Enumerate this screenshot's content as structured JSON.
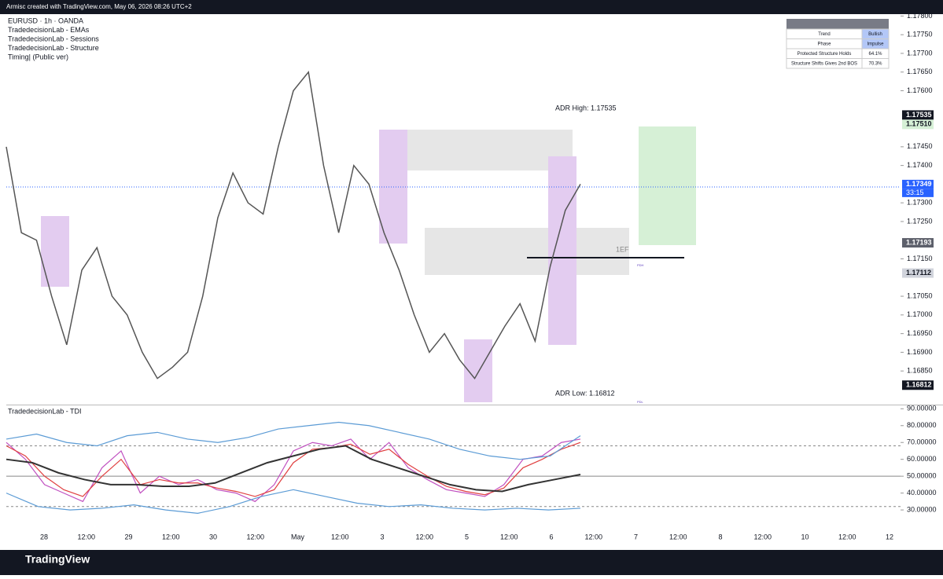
{
  "header": {
    "caption": "Armisc created with TradingView.com, May 06, 2026 08:26 UTC+2"
  },
  "legend": [
    "EURUSD · 1h · OANDA",
    "TradedecisionLab - EMAs",
    "TradedecisionLab - Sessions",
    "TradedecisionLab - Structure",
    "Timing| (Public ver)"
  ],
  "info_table": {
    "rows": [
      [
        "Trend",
        "Bullish"
      ],
      [
        "Phase",
        "Impulse"
      ],
      [
        "Protected Structure Holds",
        "64.1%"
      ],
      [
        "Structure Shifts Gives 2nd BOS",
        "70.3%"
      ]
    ]
  },
  "price_axis": {
    "ylim": [
      1.1676,
      1.17805
    ],
    "ticks": [
      {
        "value": 1.178,
        "label": "1.17800"
      },
      {
        "value": 1.1775,
        "label": "1.17750"
      },
      {
        "value": 1.177,
        "label": "1.17700"
      },
      {
        "value": 1.1765,
        "label": "1.17650"
      },
      {
        "value": 1.176,
        "label": "1.17600"
      },
      {
        "value": 1.1745,
        "label": "1.17450"
      },
      {
        "value": 1.174,
        "label": "1.17400"
      },
      {
        "value": 1.173,
        "label": "1.17300"
      },
      {
        "value": 1.1725,
        "label": "1.17250"
      },
      {
        "value": 1.1715,
        "label": "1.17150"
      },
      {
        "value": 1.1705,
        "label": "1.17050"
      },
      {
        "value": 1.17,
        "label": "1.17000"
      },
      {
        "value": 1.1695,
        "label": "1.16950"
      },
      {
        "value": 1.169,
        "label": "1.16900"
      },
      {
        "value": 1.1685,
        "label": "1.16850"
      }
    ],
    "markers": [
      {
        "value": 1.17535,
        "label": "1.17535",
        "color": "#131722"
      },
      {
        "value": 1.1751,
        "label": "1.17510",
        "color": "#d6f0d6"
      },
      {
        "value": 1.17349,
        "label": "1.17349",
        "color": "#2962ff"
      },
      {
        "value": 1.17193,
        "label": "1.17193",
        "color": "#5d606b"
      },
      {
        "value": 1.17112,
        "label": "1.17112",
        "color": "#d1d4dc"
      },
      {
        "value": 1.16812,
        "label": "1.16812",
        "color": "#131722"
      }
    ],
    "countdown": "33:15"
  },
  "annotations": {
    "adr_high": "ADR High: 1.17535",
    "adr_low": "ADR Low: 1.16812",
    "fvg": "1EF",
    "pdh": "PDH",
    "pdl": "PDL"
  },
  "price_line": {
    "color": "#555555",
    "values": [
      1.1745,
      1.1722,
      1.172,
      1.1705,
      1.1692,
      1.1712,
      1.1718,
      1.1705,
      1.17,
      1.169,
      1.1683,
      1.1686,
      1.169,
      1.1705,
      1.1726,
      1.1738,
      1.173,
      1.1727,
      1.1745,
      1.176,
      1.1765,
      1.174,
      1.1722,
      1.174,
      1.1735,
      1.1722,
      1.1712,
      1.17,
      1.169,
      1.1695,
      1.1688,
      1.1683,
      1.169,
      1.1697,
      1.1703,
      1.1693,
      1.1713,
      1.1728,
      1.1735
    ]
  },
  "time_axis": [
    "28",
    "12:00",
    "29",
    "12:00",
    "30",
    "12:00",
    "May",
    "12:00",
    "3",
    "12:00",
    "5",
    "12:00",
    "6",
    "12:00",
    "7",
    "12:00",
    "8",
    "12:00",
    "10",
    "12:00",
    "12"
  ],
  "tdi": {
    "title": "TradedecisionLab - TDI",
    "ylim": [
      17,
      92
    ],
    "ticks": [
      {
        "value": 90,
        "label": "90.00000"
      },
      {
        "value": 80,
        "label": "80.00000"
      },
      {
        "value": 70,
        "label": "70.00000"
      },
      {
        "value": 60,
        "label": "60.00000"
      },
      {
        "value": 50,
        "label": "50.00000"
      },
      {
        "value": 40,
        "label": "40.00000"
      },
      {
        "value": 30,
        "label": "30.00000"
      }
    ],
    "levels": [
      68,
      50,
      32
    ],
    "series": [
      {
        "name": "RSI",
        "color": "#c050c0",
        "values": [
          70,
          60,
          45,
          40,
          35,
          55,
          65,
          40,
          50,
          45,
          48,
          42,
          40,
          35,
          45,
          65,
          70,
          68,
          72,
          60,
          70,
          55,
          48,
          42,
          40,
          38,
          45,
          60,
          62,
          70,
          72
        ]
      },
      {
        "name": "Signal",
        "color": "#e04040",
        "values": [
          68,
          62,
          50,
          42,
          38,
          50,
          60,
          45,
          48,
          46,
          46,
          43,
          41,
          38,
          42,
          58,
          66,
          67,
          69,
          63,
          66,
          57,
          50,
          44,
          41,
          39,
          43,
          55,
          60,
          66,
          70
        ]
      },
      {
        "name": "Base",
        "color": "#333333",
        "values": [
          60,
          58,
          52,
          48,
          45,
          45,
          44,
          44,
          46,
          52,
          58,
          62,
          66,
          68,
          60,
          55,
          50,
          45,
          42,
          41,
          45,
          48,
          51
        ]
      },
      {
        "name": "Upper band",
        "color": "#5b9bd5",
        "values": [
          72,
          75,
          70,
          68,
          74,
          76,
          72,
          70,
          73,
          78,
          80,
          82,
          80,
          76,
          72,
          66,
          62,
          60,
          62,
          74
        ]
      },
      {
        "name": "Lower band",
        "color": "#5b9bd5",
        "values": [
          40,
          32,
          30,
          31,
          33,
          30,
          28,
          32,
          38,
          42,
          38,
          34,
          32,
          33,
          31,
          30,
          31,
          30,
          31
        ]
      }
    ]
  },
  "brand": "TradingView"
}
